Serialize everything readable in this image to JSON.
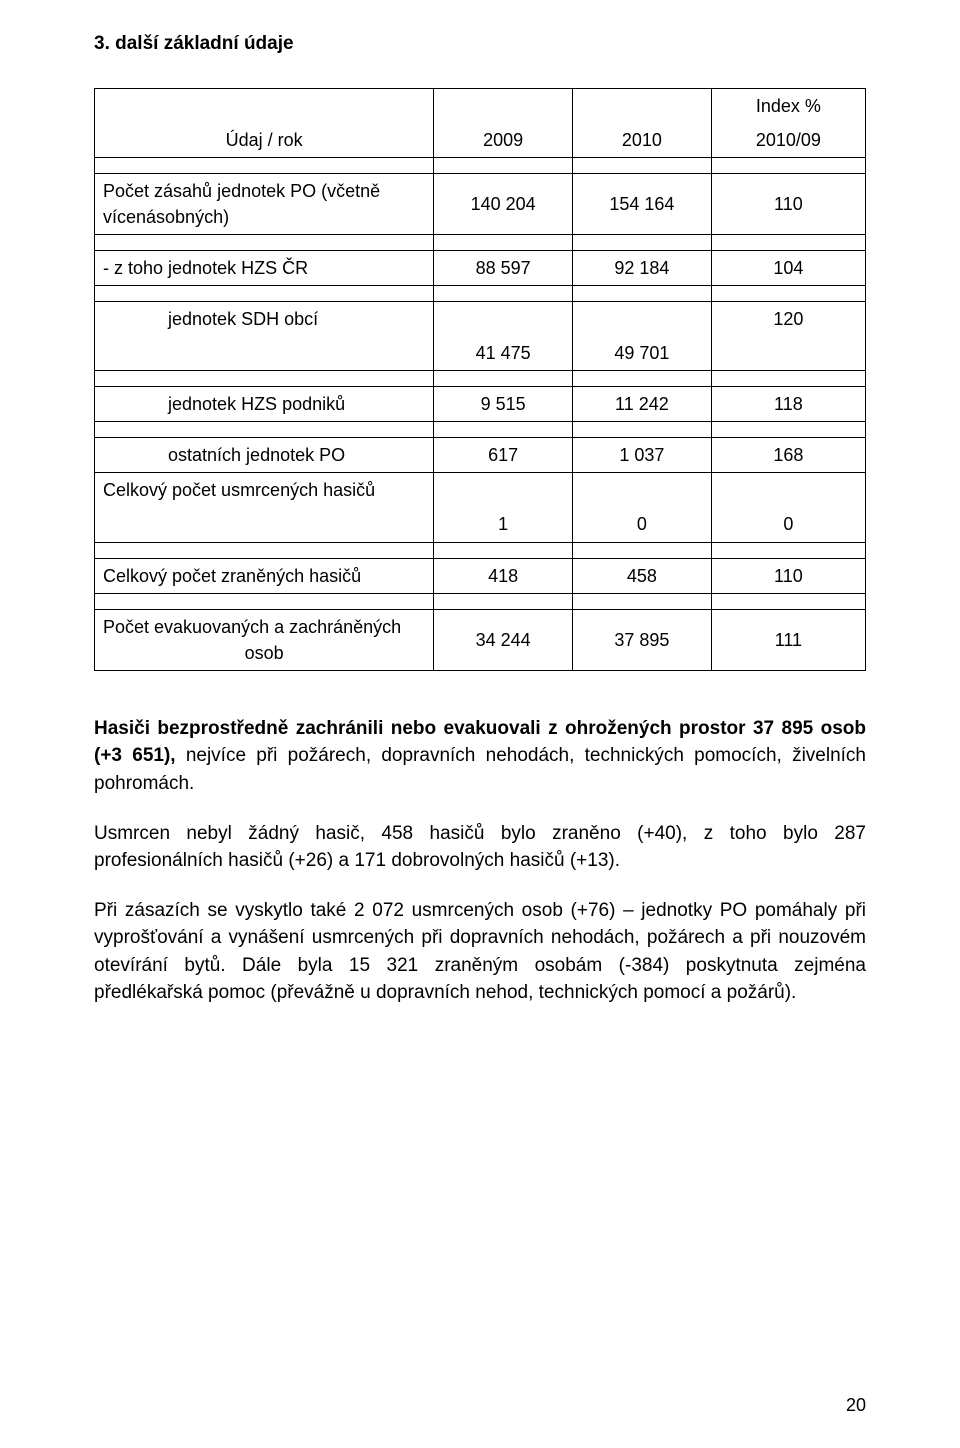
{
  "heading": "3. další základní údaje",
  "table": {
    "header": {
      "label": "Údaj / rok",
      "c1": "2009",
      "c2": "2010",
      "c3_top": "Index %",
      "c3_bot": "2010/09"
    },
    "rows": [
      {
        "kind": "gap"
      },
      {
        "label_lines": [
          "Počet zásahů jednotek PO (včetně",
          "vícenásobných)"
        ],
        "c1": "140 204",
        "c2": "154 164",
        "c3": "110"
      },
      {
        "kind": "gap"
      },
      {
        "label": "- z toho jednotek HZS ČR",
        "c1": "88 597",
        "c2": "92 184",
        "c3": "104"
      },
      {
        "kind": "gap"
      },
      {
        "label": "             jednotek SDH obcí",
        "c1_below": "41 475",
        "c2_below": "49 701",
        "c3": "120"
      },
      {
        "kind": "gap"
      },
      {
        "label": "             jednotek HZS podniků",
        "c1": "9 515",
        "c2": "11 242",
        "c3": "118"
      },
      {
        "kind": "gap"
      },
      {
        "label": "             ostatních jednotek PO",
        "c1": "617",
        "c2": "1 037",
        "c3": "168"
      },
      {
        "label": "Celkový počet usmrcených hasičů",
        "c1_below": "1",
        "c2_below": "0",
        "c3_below": "0"
      },
      {
        "kind": "gap"
      },
      {
        "label": "Celkový počet zraněných hasičů",
        "c1": "418",
        "c2": "458",
        "c3": "110"
      },
      {
        "kind": "gap"
      },
      {
        "label_lines": [
          "Počet evakuovaných a zachráněných",
          "osob"
        ],
        "c1": "34 244",
        "c2": "37 895",
        "c3": "111",
        "center_label": true
      }
    ]
  },
  "paragraphs": [
    "Hasiči bezprostředně zachránili nebo evakuovali z ohrožených prostor 37 895 osob (+3 651), nejvíce při požárech, dopravních nehodách, technických pomocích, živelních pohromách.",
    "Usmrcen nebyl žádný hasič, 458 hasičů bylo zraněno (+40), z toho bylo 287 profesionálních hasičů (+26) a 171 dobrovolných hasičů (+13).",
    "Při zásazích se vyskytlo také 2 072 usmrcených osob (+76) – jednotky PO pomáhaly při vyprošťování a vynášení usmrcených při dopravních nehodách, požárech a při nouzovém otevírání bytů. Dále byla 15 321 zraněným osobám (-384) poskytnuta zejména předlékařská pomoc (převážně u dopravních nehod, technických pomocí a požárů)."
  ],
  "bold_lead": "Hasiči bezprostředně zachránili nebo evakuovali z ohrožených prostor 37 895 osob (+3 651),",
  "page_number": "20"
}
